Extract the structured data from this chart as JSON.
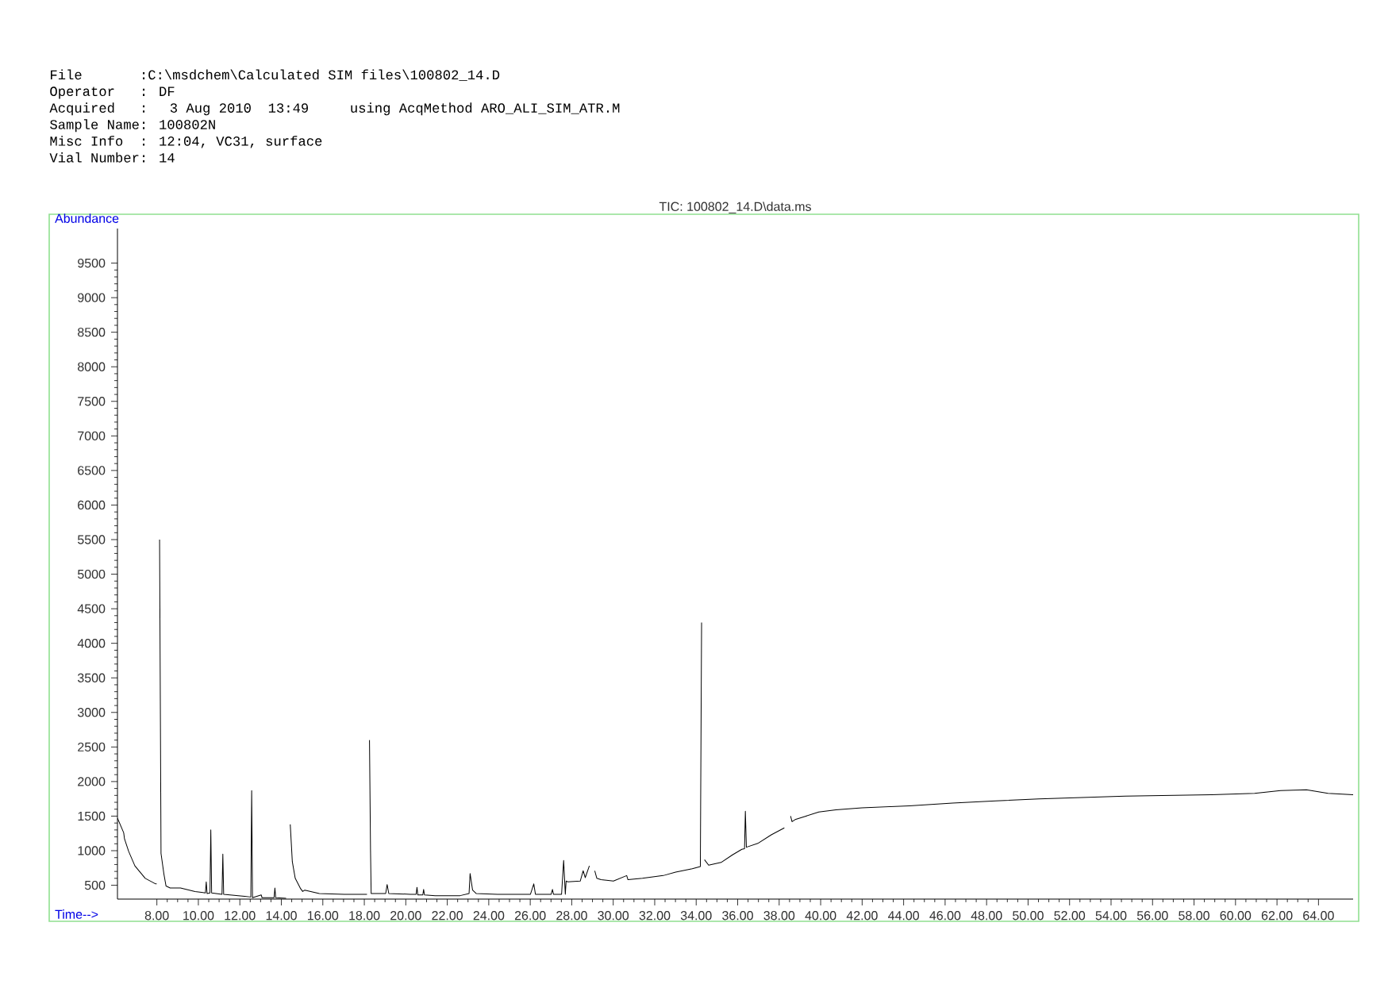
{
  "chart_data": {
    "type": "line",
    "title": "TIC: 100802_14.D\\data.ms",
    "xlabel": "Time-->",
    "ylabel": "Abundance",
    "annotations": [
      "File       :C:\\msdchem\\Calculated SIM files\\100802_14.D",
      "Operator   : DF",
      "Acquired   :  3 Aug 2010  13:49     using AcqMethod ARO_ALI_SIM_ATR.M",
      "Sample Name: 100802N",
      "Misc Info  : 12:04, VC31, surface",
      "Vial Number: 14"
    ],
    "xlim": [
      6.1,
      65.67
    ],
    "ylim": [
      300,
      10000
    ],
    "xticks": [
      {
        "value": 8,
        "label": "8.00"
      },
      {
        "value": 10,
        "label": "10.00"
      },
      {
        "value": 12,
        "label": "12.00"
      },
      {
        "value": 14,
        "label": "14.00"
      },
      {
        "value": 16,
        "label": "16.00"
      },
      {
        "value": 18,
        "label": "18.00"
      },
      {
        "value": 20,
        "label": "20.00"
      },
      {
        "value": 22,
        "label": "22.00"
      },
      {
        "value": 24,
        "label": "24.00"
      },
      {
        "value": 26,
        "label": "26.00"
      },
      {
        "value": 28,
        "label": "28.00"
      },
      {
        "value": 30,
        "label": "30.00"
      },
      {
        "value": 32,
        "label": "32.00"
      },
      {
        "value": 34,
        "label": "34.00"
      },
      {
        "value": 36,
        "label": "36.00"
      },
      {
        "value": 38,
        "label": "38.00"
      },
      {
        "value": 40,
        "label": "40.00"
      },
      {
        "value": 42,
        "label": "42.00"
      },
      {
        "value": 44,
        "label": "44.00"
      },
      {
        "value": 46,
        "label": "46.00"
      },
      {
        "value": 48,
        "label": "48.00"
      },
      {
        "value": 50,
        "label": "50.00"
      },
      {
        "value": 52,
        "label": "52.00"
      },
      {
        "value": 54,
        "label": "54.00"
      },
      {
        "value": 56,
        "label": "56.00"
      },
      {
        "value": 58,
        "label": "58.00"
      },
      {
        "value": 60,
        "label": "60.00"
      },
      {
        "value": 62,
        "label": "62.00"
      },
      {
        "value": 64,
        "label": "64.00"
      }
    ],
    "yticks": [
      500,
      1000,
      1500,
      2000,
      2500,
      3000,
      3500,
      4000,
      4500,
      5000,
      5500,
      6000,
      6500,
      7000,
      7500,
      8000,
      8500,
      9000,
      9500
    ],
    "color": "#000000",
    "x": [
      6.1,
      6.4,
      6.44,
      6.64,
      6.94,
      7.44,
      7.94,
      7.99,
      8.02,
      8.06,
      8.1,
      8.13,
      8.2,
      8.34,
      8.44,
      8.64,
      9.14,
      9.84,
      10.34,
      10.38,
      10.42,
      10.56,
      10.6,
      10.64,
      11.14,
      11.18,
      11.22,
      12.23,
      12.53,
      12.57,
      12.61,
      13.03,
      13.07,
      13.65,
      13.69,
      13.73,
      14.23,
      14.28,
      14.34,
      14.38,
      14.43,
      14.53,
      14.67,
      14.93,
      15.03,
      15.13,
      15.83,
      17.03,
      18.13,
      18.17,
      18.22,
      18.25,
      18.3,
      18.33,
      19.03,
      19.1,
      19.18,
      20.22,
      20.5,
      20.54,
      20.58,
      20.82,
      20.86,
      20.9,
      21.42,
      22.62,
      23.05,
      23.1,
      23.22,
      23.4,
      24.42,
      26.01,
      26.17,
      26.25,
      27.01,
      27.07,
      27.12,
      27.51,
      27.61,
      27.69,
      27.73,
      27.81,
      28.41,
      28.55,
      28.65,
      28.85,
      28.92,
      29.02,
      29.11,
      29.21,
      29.41,
      30.01,
      30.65,
      30.71,
      31.41,
      32.41,
      33.01,
      33.81,
      34.2,
      34.26,
      34.29,
      34.33,
      34.4,
      34.6,
      35.2,
      35.75,
      36.2,
      36.33,
      36.37,
      36.42,
      37.0,
      37.62,
      38.25,
      38.34,
      38.4,
      38.46,
      38.55,
      38.62,
      38.77,
      39.29,
      39.91,
      40.74,
      41.99,
      44.28,
      46.36,
      48.44,
      50.52,
      52.6,
      54.68,
      56.76,
      58.84,
      60.92,
      62.17,
      63.42,
      64.46,
      65.67
    ],
    "values": [
      1470,
      1260,
      1170,
      990,
      780,
      600,
      520,
      520,
      null,
      null,
      null,
      5500,
      960,
      660,
      490,
      460,
      460,
      410,
      390,
      550,
      380,
      390,
      1300,
      390,
      370,
      950,
      370,
      340,
      330,
      1870,
      320,
      360,
      320,
      320,
      460,
      320,
      310,
      null,
      null,
      null,
      1380,
      840,
      600,
      450,
      410,
      430,
      380,
      370,
      370,
      null,
      null,
      2600,
      1000,
      380,
      380,
      510,
      380,
      370,
      370,
      470,
      360,
      360,
      440,
      360,
      350,
      350,
      380,
      670,
      430,
      380,
      370,
      370,
      520,
      370,
      370,
      440,
      370,
      370,
      860,
      370,
      560,
      550,
      560,
      710,
      610,
      780,
      null,
      null,
      710,
      600,
      580,
      560,
      640,
      580,
      600,
      640,
      690,
      740,
      770,
      4300,
      null,
      null,
      870,
      790,
      830,
      940,
      1020,
      1030,
      1570,
      1050,
      1110,
      1230,
      1330,
      null,
      null,
      null,
      1500,
      1420,
      1450,
      1500,
      1560,
      1590,
      1620,
      1650,
      1690,
      1720,
      1750,
      1770,
      1790,
      1800,
      1810,
      1830,
      1870,
      1880,
      1830,
      1810
    ]
  }
}
